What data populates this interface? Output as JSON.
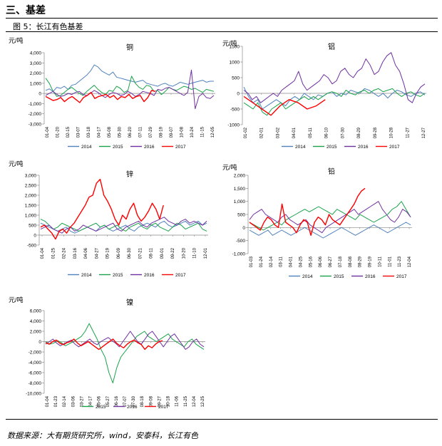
{
  "section": {
    "title": "三、基差"
  },
  "figure": {
    "caption": "图 5：长江有色基差"
  },
  "source": "数据来源：大有期货研究所，wind，安泰科，长江有色",
  "colors": {
    "2014": "#4f81bd",
    "2015": "#1aa34a",
    "2016": "#7030a0",
    "2017": "#ff0000"
  },
  "chart_data": [
    {
      "type": "line",
      "title": "铜",
      "ylabel": "元/吨",
      "ylim": [
        -3000,
        4000
      ],
      "yticks": [
        "4,000",
        "3,000",
        "2,000",
        "1,000",
        "0",
        "-1,000",
        "-2,000",
        "-3,000"
      ],
      "x_ticks": [
        "01-04",
        "01-20",
        "02-15",
        "03-07",
        "03-18",
        "04-17",
        "05-08",
        "05-30",
        "06-20",
        "07-11",
        "07-29",
        "08-19",
        "09-07",
        "10-08",
        "10-24",
        "11-15",
        "12-05"
      ],
      "legend": [
        "2014",
        "2015",
        "2016",
        "2017"
      ],
      "series": [
        {
          "name": "2014",
          "values": [
            300,
            450,
            200,
            600,
            500,
            700,
            400,
            800,
            900,
            1200,
            1500,
            1800,
            2200,
            2800,
            2600,
            2200,
            2000,
            1800,
            2100,
            1600,
            1500,
            1400,
            1300,
            1200,
            1100,
            1200,
            1300,
            1000,
            900,
            800,
            700,
            900,
            1000,
            800,
            700,
            900,
            1100,
            1000,
            900,
            1000,
            1100,
            1200,
            1300,
            1100,
            1200,
            1200
          ]
        },
        {
          "name": "2015",
          "values": [
            1500,
            1000,
            200,
            -300,
            -200,
            100,
            400,
            600,
            300,
            0,
            -200,
            200,
            500,
            800,
            400,
            100,
            -100,
            300,
            200,
            700,
            500,
            100,
            300,
            1700,
            1000,
            600,
            400,
            800,
            700,
            200,
            300,
            -100,
            200,
            600,
            400,
            300,
            500,
            700,
            600,
            400,
            500,
            300,
            100,
            400,
            300,
            200
          ]
        },
        {
          "name": "2016",
          "values": [
            -200,
            0,
            200,
            -100,
            -300,
            -200,
            0,
            -100,
            100,
            200,
            -100,
            -200,
            0,
            300,
            100,
            -200,
            -400,
            -100,
            100,
            0,
            -200,
            -100,
            200,
            0,
            -300,
            -100,
            200,
            100,
            0,
            -200,
            400,
            300,
            500,
            600,
            400,
            200,
            0,
            -200,
            100,
            2300,
            -1500,
            -300,
            0,
            -400,
            -500,
            -200
          ]
        },
        {
          "name": "2017",
          "values": [
            -300,
            -500,
            -700,
            -600,
            -400,
            -800,
            -500,
            -300,
            -600,
            -900,
            -400,
            -200,
            100,
            -500,
            -300,
            -200,
            -100,
            -400,
            -200,
            -600,
            -300,
            -400,
            -100,
            -500,
            -300,
            -200,
            -800,
            -400,
            300,
            200
          ]
        }
      ]
    },
    {
      "type": "line",
      "title": "铝",
      "ylabel": "元/吨",
      "ylim": [
        -1000,
        1500
      ],
      "yticks": [
        "1500",
        "1000",
        "500",
        "0",
        "-500",
        "-1000"
      ],
      "x_ticks": [
        "01-02",
        "02-01",
        "03-02",
        "04-01",
        "05-11",
        "06-10",
        "07-30",
        "08-29",
        "09-28",
        "10-28",
        "11-27",
        "12-27"
      ],
      "legend": [
        "2014",
        "2015",
        "2016",
        "2017"
      ],
      "series": [
        {
          "name": "2014",
          "values": [
            200,
            -100,
            -300,
            -200,
            -500,
            -400,
            -300,
            -200,
            -300,
            -400,
            -200,
            -100,
            -200,
            0,
            -100,
            -200,
            -50,
            -100,
            0,
            50,
            -100,
            0,
            -50,
            100,
            50,
            0,
            150,
            100,
            0,
            -100,
            0,
            -150,
            0,
            100,
            50,
            -50,
            -100,
            0,
            50,
            -50
          ]
        },
        {
          "name": "2015",
          "values": [
            -300,
            -400,
            -500,
            -300,
            -600,
            -700,
            -500,
            -400,
            -300,
            -500,
            -400,
            -300,
            -200,
            -100,
            -200,
            -100,
            -200,
            -100,
            0,
            50,
            0,
            -100,
            100,
            0,
            -50,
            50,
            100,
            0,
            100,
            150,
            50,
            100,
            150,
            0,
            -100,
            0,
            50,
            -50,
            -100,
            0
          ]
        },
        {
          "name": "2016",
          "values": [
            100,
            0,
            -200,
            -100,
            -300,
            -200,
            -100,
            0,
            -100,
            100,
            200,
            300,
            400,
            700,
            300,
            100,
            200,
            300,
            400,
            600,
            500,
            300,
            400,
            700,
            800,
            600,
            500,
            700,
            800,
            1100,
            900,
            600,
            700,
            1000,
            1200,
            1300,
            900,
            700,
            300,
            -200,
            -300,
            0,
            200,
            300
          ]
        },
        {
          "name": "2017",
          "values": [
            -100,
            -300,
            -500,
            -700,
            -400,
            -200,
            -300,
            -500,
            -400,
            -200
          ]
        }
      ]
    },
    {
      "type": "line",
      "title": "锌",
      "ylabel": "元/吨",
      "ylim": [
        -500,
        3000
      ],
      "yticks": [
        "3,000",
        "2,500",
        "2,000",
        "1,500",
        "1,000",
        "500",
        "0",
        "-500"
      ],
      "x_ticks": [
        "01-04",
        "01-25",
        "02-24",
        "03-16",
        "04-06",
        "04-27",
        "05-19",
        "06-09",
        "06-30",
        "07-21",
        "08-11",
        "09-01",
        "09-22",
        "10-20",
        "11-10",
        "12-01"
      ],
      "legend": [
        "2014",
        "2015",
        "2016",
        "2017"
      ],
      "series": [
        {
          "name": "2014",
          "values": [
            600,
            500,
            400,
            300,
            200,
            300,
            400,
            200,
            100,
            200,
            300,
            400,
            300,
            200,
            400,
            500,
            300,
            200,
            300,
            400,
            500,
            300,
            200,
            400,
            500,
            600,
            500,
            400,
            600,
            700,
            500,
            400,
            500,
            600,
            700,
            500,
            600,
            700,
            500,
            600
          ]
        },
        {
          "name": "2015",
          "values": [
            800,
            700,
            500,
            300,
            400,
            600,
            500,
            400,
            300,
            200,
            300,
            400,
            500,
            600,
            400,
            500,
            300,
            400,
            500,
            300,
            200,
            400,
            500,
            600,
            400,
            300,
            500,
            600,
            400,
            300,
            200,
            400,
            600,
            500,
            300,
            400,
            500,
            600,
            300,
            200
          ]
        },
        {
          "name": "2016",
          "values": [
            300,
            400,
            500,
            300,
            200,
            100,
            300,
            400,
            200,
            300,
            500,
            400,
            300,
            200,
            300,
            400,
            500,
            600,
            300,
            200,
            400,
            500,
            600,
            700,
            500,
            400,
            600,
            700,
            800,
            900,
            700,
            600,
            500,
            700,
            800,
            600,
            700,
            600,
            500,
            700
          ]
        },
        {
          "name": "2017",
          "values": [
            400,
            500,
            300,
            100,
            -200,
            200,
            300,
            100,
            400,
            600,
            900,
            1200,
            1500,
            1900,
            2000,
            2600,
            2800,
            2000,
            1700,
            1300,
            800,
            500,
            1000,
            800,
            1300,
            1600,
            1000,
            700,
            900,
            1200,
            1600,
            1300,
            800,
            1500
          ]
        }
      ]
    },
    {
      "type": "line",
      "title": "铅",
      "ylabel": "元/吨",
      "ylim": [
        -1000,
        2000
      ],
      "yticks": [
        "2,000",
        "1,500",
        "1,000",
        "500",
        "0",
        "-500",
        "-1,000"
      ],
      "x_ticks": [
        "01-03",
        "01-24",
        "02-14",
        "03-11",
        "04-01",
        "04-25",
        "05-16",
        "06-06",
        "06-27",
        "07-18",
        "08-08",
        "08-29",
        "09-19",
        "10-11",
        "11-01",
        "11-23",
        "12-04"
      ],
      "legend": [
        "2014",
        "2015",
        "2016",
        "2017"
      ],
      "series": [
        {
          "name": "2014",
          "values": [
            -100,
            -200,
            -300,
            -200,
            -100,
            -300,
            -200,
            -100,
            -200,
            -300,
            -200,
            -100,
            0,
            -100,
            -200,
            -300,
            -400,
            -300,
            -200,
            -100,
            0,
            -100,
            -200,
            -300,
            -200,
            -100,
            0,
            100,
            0,
            -100,
            -200,
            -100,
            0,
            100,
            200,
            100
          ]
        },
        {
          "name": "2015",
          "values": [
            200,
            100,
            0,
            -100,
            0,
            100,
            200,
            100,
            300,
            400,
            500,
            600,
            700,
            600,
            700,
            800,
            700,
            600,
            500,
            700,
            600,
            500,
            400,
            300,
            500,
            400,
            300,
            200,
            300,
            400,
            500,
            700,
            800,
            1000,
            700,
            400
          ]
        },
        {
          "name": "2016",
          "values": [
            300,
            500,
            600,
            700,
            500,
            400,
            300,
            200,
            400,
            500,
            300,
            200,
            100,
            200,
            300,
            100,
            0,
            -100,
            -200,
            0,
            100,
            200,
            300,
            400,
            500,
            600,
            700,
            500,
            600,
            700,
            800,
            900,
            1000,
            700,
            500,
            300,
            200,
            400,
            700,
            600,
            400
          ]
        },
        {
          "name": "2017",
          "values": [
            200,
            100,
            0,
            -100,
            200,
            400,
            300,
            100,
            0,
            900,
            200,
            100,
            0,
            -200,
            100,
            300,
            200,
            -300,
            200,
            400,
            300,
            100,
            500,
            300,
            200,
            100,
            300,
            500,
            700,
            900,
            1200,
            1400,
            1500
          ]
        }
      ]
    },
    {
      "type": "line",
      "title": "镍",
      "ylabel": "元/吨",
      "ylim": [
        -10000,
        6000
      ],
      "yticks": [
        "6,000",
        "4,000",
        "2,000",
        "0",
        "-2,000",
        "-4,000",
        "-6,000",
        "-8,000",
        "-10,000"
      ],
      "x_ticks": [
        "01-04",
        "01-23",
        "02-14",
        "03-06",
        "03-27",
        "04-17",
        "05-06",
        "05-27",
        "06-16",
        "07-07",
        "07-30",
        "08-18",
        "09-08",
        "09-27",
        "10-18",
        "11-06",
        "11-25",
        "12-04",
        "12-25"
      ],
      "legend": [
        "2015",
        "2016",
        "2017"
      ],
      "series": [
        {
          "name": "2015",
          "values": [
            0,
            -500,
            -300,
            200,
            -200,
            -800,
            -400,
            0,
            500,
            1000,
            2000,
            3500,
            2000,
            500,
            -1500,
            -3000,
            -6000,
            -8000,
            -5000,
            -3000,
            -2000,
            -1000,
            0,
            1000,
            1500,
            2000,
            1000,
            500,
            0,
            500,
            1000,
            1500,
            500,
            0,
            -500,
            -1000,
            0,
            500,
            -500,
            -1000,
            -1500
          ]
        },
        {
          "name": "2016",
          "values": [
            -500,
            0,
            500,
            -300,
            -800,
            -400,
            0,
            300,
            -500,
            -1000,
            -500,
            0,
            500,
            -200,
            -600,
            0,
            400,
            800,
            200,
            -300,
            -1000,
            0,
            1000,
            2000,
            1000,
            0,
            -500,
            500,
            1500,
            2000,
            1000,
            0,
            -1000,
            0,
            1000,
            1500,
            500,
            -500,
            -1500,
            -1000,
            0,
            500,
            -500,
            -1000
          ]
        },
        {
          "name": "2017",
          "values": [
            -200,
            -500,
            0,
            300,
            -300,
            -600,
            -200,
            0,
            500,
            -300,
            -800,
            -400,
            0,
            -500,
            -1000,
            -1500,
            -1000,
            -500,
            0,
            500,
            -300,
            -800,
            -1200,
            -500,
            0,
            300,
            -200,
            -600,
            -1500,
            -800,
            -1200,
            -500,
            0,
            200
          ]
        }
      ]
    }
  ]
}
